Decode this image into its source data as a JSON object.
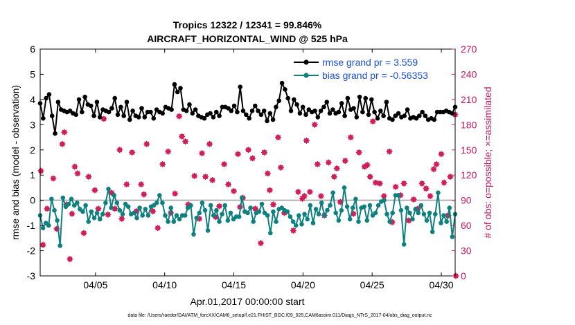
{
  "chart_data": {
    "type": "line",
    "title_line1": "Tropics 12322 / 12341 = 99.846%",
    "title_line2": "AIRCRAFT_HORIZONTAL_WIND @ 525 hPa",
    "xlabel": "Apr.01,2017 00:00:00 start",
    "ylabel": "rmse and bias (model - observation)",
    "y2label": "# of obs: o=possible; ×=assimilated",
    "footnote": "data file: /Users/raeder/DAI/ATM_forcXX/CAM6_setup/f.e21.FHIST_BGC.f09_025.CAM6assim.011/Diags_NTrS_2017-04/obs_diag_output.nc",
    "xlim": [
      1,
      31
    ],
    "ylim": [
      -3,
      6
    ],
    "y2lim": [
      0,
      270
    ],
    "x_tick_values": [
      5,
      10,
      15,
      20,
      25,
      30
    ],
    "x_tick_labels": [
      "04/05",
      "04/10",
      "04/15",
      "04/20",
      "04/25",
      "04/30"
    ],
    "y_tick_labels": [
      "-3",
      "-2",
      "-1",
      "0",
      "1",
      "2",
      "3",
      "4",
      "5",
      "6"
    ],
    "y2_tick_labels": [
      "0",
      "30",
      "60",
      "90",
      "120",
      "150",
      "180",
      "210",
      "240",
      "270"
    ],
    "colors": {
      "rmse": "#000000",
      "bias": "#0f8080",
      "obs": "#d0205a",
      "zero": "#b0b0b0"
    },
    "series": [
      {
        "name": "rmse",
        "legend": "rmse grand pr = 3.559",
        "values": [
          3.85,
          3.25,
          4.05,
          4.2,
          3.35,
          2.65,
          3.9,
          3.6,
          3.55,
          3.5,
          3.55,
          3.45,
          3.4,
          4.0,
          3.5,
          4.1,
          3.8,
          3.75,
          3.35,
          3.9,
          3.3,
          3.6,
          3.55,
          3.5,
          3.65,
          4.05,
          3.4,
          3.7,
          3.35,
          3.9,
          3.2,
          3.55,
          3.35,
          3.3,
          3.65,
          3.3,
          3.5,
          3.5,
          3.25,
          3.6,
          3.5,
          3.45,
          3.7,
          3.65,
          3.6,
          4.6,
          4.3,
          4.45,
          3.6,
          3.55,
          3.8,
          3.45,
          3.6,
          3.35,
          3.3,
          3.25,
          3.4,
          3.45,
          3.3,
          3.5,
          3.35,
          3.7,
          3.7,
          3.65,
          3.55,
          3.75,
          3.5,
          4.5,
          3.55,
          3.4,
          3.25,
          3.55,
          3.75,
          3.55,
          3.4,
          3.55,
          3.15,
          3.45,
          3.2,
          3.7,
          3.95,
          4.65,
          4.4,
          4.05,
          3.55,
          4.0,
          3.8,
          3.45,
          3.7,
          3.4,
          3.6,
          3.5,
          3.55,
          3.3,
          3.55,
          3.7,
          3.9,
          3.45,
          3.6,
          3.45,
          3.5,
          3.85,
          3.35,
          4.05,
          3.6,
          3.65,
          3.3,
          4.1,
          3.5,
          4.05,
          3.4,
          4.0,
          3.5,
          3.25,
          3.55,
          3.35,
          3.9,
          3.25,
          3.2,
          3.35,
          3.45,
          3.3,
          3.35,
          3.6,
          3.25,
          3.3,
          3.25,
          3.35,
          3.5,
          3.35,
          3.2,
          3.25,
          3.2,
          3.5,
          3.5,
          3.5,
          3.55,
          3.5,
          3.45,
          3.7
        ]
      },
      {
        "name": "bias",
        "legend": "bias grand pr = -0.56353",
        "values": [
          -0.6,
          -1.1,
          -0.9,
          -1.0,
          0.05,
          -0.4,
          -0.8,
          -1.8,
          0.1,
          -0.25,
          -0.15,
          0.05,
          -0.2,
          -0.1,
          -0.35,
          -0.45,
          -0.2,
          -0.85,
          -0.45,
          -0.7,
          -0.5,
          -0.75,
          -0.55,
          -0.1,
          0.45,
          -0.3,
          0.2,
          -0.1,
          -0.4,
          -0.55,
          -0.15,
          -0.25,
          -0.55,
          -0.5,
          -0.7,
          -0.3,
          -0.6,
          -0.35,
          -0.6,
          -0.25,
          -0.2,
          -0.1,
          0.2,
          -0.1,
          -0.6,
          -0.85,
          -0.3,
          -0.85,
          -0.6,
          -0.75,
          -0.6,
          -0.6,
          -0.3,
          -0.2,
          -1.35,
          -0.7,
          -0.5,
          -0.1,
          -0.4,
          -1.2,
          -0.2,
          -0.6,
          -0.4,
          -0.85,
          -0.55,
          -0.2,
          -0.8,
          -0.5,
          -0.75,
          -0.65,
          -0.65,
          0.1,
          -0.45,
          -0.5,
          -0.3,
          -0.85,
          -0.5,
          -0.45,
          -0.15,
          -0.5,
          -0.6,
          -1.3,
          -0.45,
          -0.85,
          -0.35,
          -0.3,
          -0.4,
          -0.45,
          -0.65,
          -0.85,
          -1.0,
          -0.6,
          -0.95,
          -0.55,
          -0.75,
          -0.2,
          -0.9,
          -0.35,
          -0.55,
          -0.1,
          -0.6,
          -0.4,
          -0.2,
          0.3,
          -0.5,
          -0.8,
          -0.4,
          0.5,
          -0.25,
          -0.75,
          -0.3,
          0.05,
          -0.85,
          -0.3,
          -0.25,
          -0.8,
          -0.2,
          -0.6,
          -0.5,
          -0.2,
          -0.05,
          0.0,
          -0.55,
          -0.85,
          -0.5,
          0.2,
          0.2,
          -0.4,
          -1.75,
          -0.3,
          -0.5,
          -0.75,
          -0.35,
          -0.5,
          -0.2,
          -0.55,
          -0.8,
          -0.5,
          -1.25,
          -0.55,
          0.3,
          -0.9,
          -0.6,
          -0.85,
          -0.3,
          -1.45,
          -0.55
        ]
      }
    ],
    "obs_counts": [
      [
        1.05,
        125
      ],
      [
        1.2,
        37
      ],
      [
        1.5,
        80
      ],
      [
        1.95,
        116
      ],
      [
        2.2,
        56
      ],
      [
        2.6,
        157
      ],
      [
        2.75,
        171
      ],
      [
        2.9,
        85
      ],
      [
        3.15,
        20
      ],
      [
        3.3,
        74
      ],
      [
        3.5,
        130
      ],
      [
        3.7,
        122
      ],
      [
        4.15,
        51
      ],
      [
        4.5,
        118
      ],
      [
        4.95,
        102
      ],
      [
        5.2,
        80
      ],
      [
        5.6,
        187
      ],
      [
        5.9,
        73
      ],
      [
        6.15,
        99
      ],
      [
        6.4,
        80
      ],
      [
        6.75,
        150
      ],
      [
        6.9,
        68
      ],
      [
        7.25,
        109
      ],
      [
        7.65,
        147
      ],
      [
        7.95,
        77
      ],
      [
        8.3,
        109
      ],
      [
        8.5,
        97
      ],
      [
        8.7,
        157
      ],
      [
        9.15,
        77
      ],
      [
        9.5,
        57
      ],
      [
        9.85,
        133
      ],
      [
        10.25,
        148
      ],
      [
        10.45,
        75
      ],
      [
        10.75,
        98
      ],
      [
        11.05,
        190
      ],
      [
        11.25,
        166
      ],
      [
        11.5,
        160
      ],
      [
        11.7,
        85
      ],
      [
        12.15,
        119
      ],
      [
        12.5,
        68
      ],
      [
        12.7,
        146
      ],
      [
        12.95,
        118
      ],
      [
        13.25,
        157
      ],
      [
        13.45,
        114
      ],
      [
        13.7,
        70
      ],
      [
        13.95,
        83
      ],
      [
        14.3,
        133
      ],
      [
        14.6,
        109
      ],
      [
        15.0,
        101
      ],
      [
        15.3,
        145
      ],
      [
        15.45,
        82
      ],
      [
        15.65,
        93
      ],
      [
        16.05,
        150
      ],
      [
        16.35,
        140
      ],
      [
        16.55,
        80
      ],
      [
        16.95,
        39
      ],
      [
        17.2,
        147
      ],
      [
        17.45,
        122
      ],
      [
        17.6,
        102
      ],
      [
        17.85,
        85
      ],
      [
        18.2,
        165
      ],
      [
        18.4,
        129
      ],
      [
        18.65,
        75
      ],
      [
        19.3,
        54
      ],
      [
        19.65,
        100
      ],
      [
        19.95,
        92
      ],
      [
        20.1,
        95
      ],
      [
        20.25,
        161
      ],
      [
        20.5,
        100
      ],
      [
        20.85,
        180
      ],
      [
        21.05,
        133
      ],
      [
        21.3,
        95
      ],
      [
        21.55,
        72
      ],
      [
        21.85,
        135
      ],
      [
        22.25,
        118
      ],
      [
        22.45,
        128
      ],
      [
        22.7,
        88
      ],
      [
        23.05,
        137
      ],
      [
        23.45,
        165
      ],
      [
        23.65,
        74
      ],
      [
        24.05,
        147
      ],
      [
        24.45,
        130
      ],
      [
        24.65,
        132
      ],
      [
        24.85,
        118
      ],
      [
        25.05,
        184
      ],
      [
        25.25,
        111
      ],
      [
        25.55,
        110
      ],
      [
        25.85,
        95
      ],
      [
        26.25,
        148
      ],
      [
        26.45,
        64
      ],
      [
        26.7,
        106
      ],
      [
        27.05,
        96
      ],
      [
        27.3,
        110
      ],
      [
        27.65,
        66
      ],
      [
        28.0,
        91
      ],
      [
        28.3,
        80
      ],
      [
        28.6,
        110
      ],
      [
        28.9,
        104
      ],
      [
        29.2,
        95
      ],
      [
        29.45,
        127
      ],
      [
        29.65,
        133
      ],
      [
        30.0,
        145
      ],
      [
        30.2,
        111
      ],
      [
        30.5,
        72
      ],
      [
        30.65,
        118
      ],
      [
        31.0,
        192
      ],
      [
        31.05,
        0
      ]
    ]
  }
}
